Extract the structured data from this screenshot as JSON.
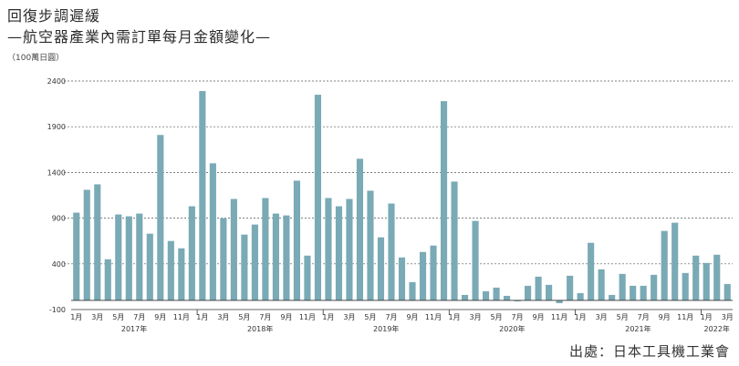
{
  "header": {
    "title": "回復步調遲緩",
    "subtitle": "—航空器產業內需訂單每月金額變化—",
    "unit": "（100萬日圓）"
  },
  "footer": {
    "source": "出處：日本工具機工業會"
  },
  "colors": {
    "bar": "#7aaab5",
    "zero_line": "#333333",
    "grid": "#555555"
  },
  "chart_data": {
    "type": "bar",
    "title": "",
    "xlabel": "",
    "ylabel": "",
    "ylim": [
      -100,
      2400
    ],
    "yticks": [
      -100,
      400,
      900,
      1400,
      1900,
      2400
    ],
    "grid": true,
    "categories": [
      "2017-01",
      "2017-02",
      "2017-03",
      "2017-04",
      "2017-05",
      "2017-06",
      "2017-07",
      "2017-08",
      "2017-09",
      "2017-10",
      "2017-11",
      "2017-12",
      "2018-01",
      "2018-02",
      "2018-03",
      "2018-04",
      "2018-05",
      "2018-06",
      "2018-07",
      "2018-08",
      "2018-09",
      "2018-10",
      "2018-11",
      "2018-12",
      "2019-01",
      "2019-02",
      "2019-03",
      "2019-04",
      "2019-05",
      "2019-06",
      "2019-07",
      "2019-08",
      "2019-09",
      "2019-10",
      "2019-11",
      "2019-12",
      "2020-01",
      "2020-02",
      "2020-03",
      "2020-04",
      "2020-05",
      "2020-06",
      "2020-07",
      "2020-08",
      "2020-09",
      "2020-10",
      "2020-11",
      "2020-12",
      "2021-01",
      "2021-02",
      "2021-03",
      "2021-04",
      "2021-05",
      "2021-06",
      "2021-07",
      "2021-08",
      "2021-09",
      "2021-10",
      "2021-11",
      "2021-12",
      "2022-01",
      "2022-02",
      "2022-03"
    ],
    "values": [
      960,
      1210,
      1270,
      450,
      940,
      920,
      950,
      730,
      1810,
      650,
      570,
      1030,
      2290,
      1500,
      900,
      1110,
      720,
      830,
      1120,
      950,
      930,
      1310,
      490,
      2250,
      1120,
      1030,
      1110,
      1550,
      1200,
      690,
      1060,
      470,
      200,
      530,
      600,
      2180,
      1300,
      60,
      870,
      100,
      140,
      50,
      -10,
      160,
      260,
      170,
      -30,
      270,
      80,
      630,
      340,
      60,
      290,
      160,
      160,
      280,
      760,
      850,
      300,
      490,
      410,
      500,
      180
    ],
    "month_tick_labels": [
      "1月",
      "3月",
      "5月",
      "7月",
      "9月",
      "11月"
    ],
    "year_labels": [
      "2017年",
      "2018年",
      "2019年",
      "2020年",
      "2021年",
      "2022年"
    ]
  }
}
